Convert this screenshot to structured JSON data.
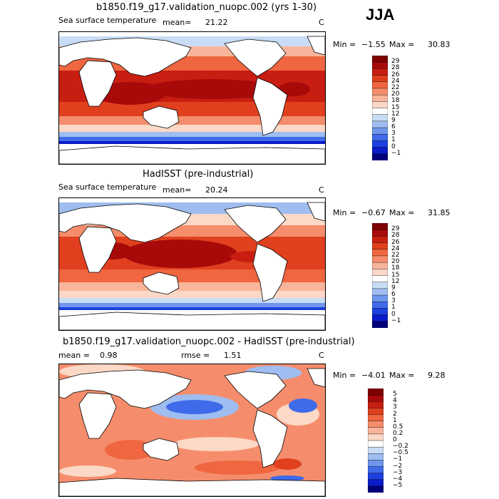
{
  "season": "JJA",
  "panels": [
    {
      "title": "b1850.f19_g17.validation_nuopc.002 (yrs 1-30)",
      "variable": "Sea surface temperature",
      "stat_label": "mean=",
      "stat_value": "21.22",
      "units": "C",
      "min_label": "Min =",
      "min_value": "−1.55",
      "max_label": "Max =",
      "max_value": "30.83"
    },
    {
      "title": "HadISST (pre-industrial)",
      "variable": "Sea surface temperature",
      "stat_label": "mean=",
      "stat_value": "20.24",
      "units": "C",
      "min_label": "Min =",
      "min_value": "−0.67",
      "max_label": "Max =",
      "max_value": "31.85"
    },
    {
      "title": "b1850.f19_g17.validation_nuopc.002 - HadISST (pre-industrial)",
      "stat_label": "mean =",
      "stat_value": "0.98",
      "rmse_label": "rmse =",
      "rmse_value": "1.51",
      "units": "C",
      "min_label": "Min =",
      "min_value": "−4.01",
      "max_label": "Max =",
      "max_value": "9.28"
    }
  ],
  "colorbars": {
    "sst": {
      "labels": [
        "29",
        "28",
        "26",
        "24",
        "22",
        "20",
        "18",
        "15",
        "12",
        "9",
        "6",
        "3",
        "1",
        "0",
        "−1"
      ],
      "colors": [
        "#7f0000",
        "#a80a0a",
        "#c81e12",
        "#e0401e",
        "#ef6640",
        "#f58d6c",
        "#f9b59b",
        "#fcd8c6",
        "#ffffff",
        "#c8dcf5",
        "#9fbdf0",
        "#6f96ec",
        "#3f6bea",
        "#1c3fe0",
        "#0a1cc8",
        "#00007a"
      ]
    },
    "diff": {
      "labels": [
        "5",
        "4",
        "3",
        "2",
        "1",
        "0.5",
        "0.2",
        "0",
        "−0.2",
        "−0.5",
        "−1",
        "−2",
        "−3",
        "−4",
        "−5"
      ],
      "colors": [
        "#7f0000",
        "#a80a0a",
        "#c81e12",
        "#e0401e",
        "#ef6640",
        "#f58d6c",
        "#f9b59b",
        "#fcd8c6",
        "#ffffff",
        "#c8dcf5",
        "#9fbdf0",
        "#6f96ec",
        "#3f6bea",
        "#1c3fe0",
        "#0a1cc8",
        "#00007a"
      ]
    }
  },
  "chart_data": [
    {
      "type": "heatmap",
      "title": "b1850.f19_g17.validation_nuopc.002 (yrs 1-30)",
      "variable": "Sea surface temperature",
      "units": "C",
      "season": "JJA",
      "mean": 21.22,
      "min": -1.55,
      "max": 30.83,
      "contour_levels": [
        -1,
        0,
        1,
        3,
        6,
        9,
        12,
        15,
        18,
        20,
        22,
        24,
        26,
        28,
        29
      ]
    },
    {
      "type": "heatmap",
      "title": "HadISST (pre-industrial)",
      "variable": "Sea surface temperature",
      "units": "C",
      "season": "JJA",
      "mean": 20.24,
      "min": -0.67,
      "max": 31.85,
      "contour_levels": [
        -1,
        0,
        1,
        3,
        6,
        9,
        12,
        15,
        18,
        20,
        22,
        24,
        26,
        28,
        29
      ]
    },
    {
      "type": "heatmap",
      "title": "b1850.f19_g17.validation_nuopc.002 - HadISST (pre-industrial)",
      "units": "C",
      "season": "JJA",
      "mean": 0.98,
      "rmse": 1.51,
      "min": -4.01,
      "max": 9.28,
      "contour_levels": [
        -5,
        -4,
        -3,
        -2,
        -1,
        -0.5,
        -0.2,
        0,
        0.2,
        0.5,
        1,
        2,
        3,
        4,
        5
      ]
    }
  ]
}
